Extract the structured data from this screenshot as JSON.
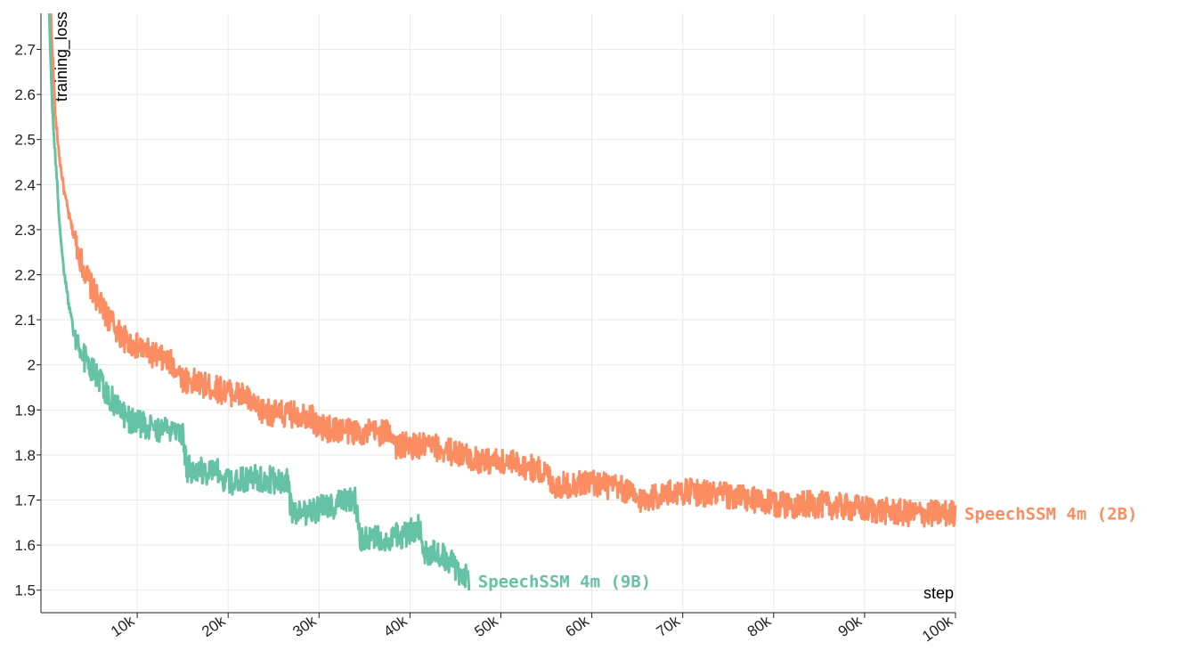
{
  "chart_data": {
    "type": "line",
    "xlabel": "step",
    "ylabel": "training_loss",
    "xlim": [
      0,
      100000
    ],
    "ylim": [
      1.45,
      2.78
    ],
    "grid": true,
    "x_ticks": [
      10000,
      20000,
      30000,
      40000,
      50000,
      60000,
      70000,
      80000,
      90000,
      100000
    ],
    "x_tick_labels": [
      "10k",
      "20k",
      "30k",
      "40k",
      "50k",
      "60k",
      "70k",
      "80k",
      "90k",
      "100k"
    ],
    "y_ticks": [
      1.5,
      1.6,
      1.7,
      1.8,
      1.9,
      2.0,
      2.1,
      2.2,
      2.3,
      2.4,
      2.5,
      2.6,
      2.7
    ],
    "y_tick_labels": [
      "1.5",
      "1.6",
      "1.7",
      "1.8",
      "1.9",
      "2",
      "2.1",
      "2.2",
      "2.3",
      "2.4",
      "2.5",
      "2.6",
      "2.7"
    ],
    "series": [
      {
        "name": "SpeechSSM 4m (2B)",
        "color": "#fc8d62",
        "points": [
          [
            500,
            2.78
          ],
          [
            1000,
            2.55
          ],
          [
            1500,
            2.45
          ],
          [
            2000,
            2.38
          ],
          [
            2500,
            2.33
          ],
          [
            3000,
            2.29
          ],
          [
            4000,
            2.22
          ],
          [
            5000,
            2.17
          ],
          [
            6000,
            2.13
          ],
          [
            7000,
            2.1
          ],
          [
            8000,
            2.07
          ],
          [
            9000,
            2.05
          ],
          [
            10000,
            2.04
          ],
          [
            12000,
            2.02
          ],
          [
            14000,
            2.0
          ],
          [
            15000,
            1.97
          ],
          [
            18000,
            1.95
          ],
          [
            22000,
            1.93
          ],
          [
            23000,
            1.9
          ],
          [
            26000,
            1.89
          ],
          [
            29000,
            1.89
          ],
          [
            30000,
            1.86
          ],
          [
            35000,
            1.85
          ],
          [
            38000,
            1.85
          ],
          [
            38500,
            1.82
          ],
          [
            42000,
            1.82
          ],
          [
            46000,
            1.8
          ],
          [
            47000,
            1.79
          ],
          [
            52000,
            1.78
          ],
          [
            55000,
            1.76
          ],
          [
            56000,
            1.73
          ],
          [
            60000,
            1.74
          ],
          [
            64000,
            1.72
          ],
          [
            65000,
            1.7
          ],
          [
            70000,
            1.72
          ],
          [
            75000,
            1.71
          ],
          [
            80000,
            1.69
          ],
          [
            85000,
            1.69
          ],
          [
            90000,
            1.68
          ],
          [
            95000,
            1.67
          ],
          [
            100000,
            1.67
          ]
        ]
      },
      {
        "name": "SpeechSSM 4m (9B)",
        "color": "#66c2a5",
        "points": [
          [
            300,
            2.78
          ],
          [
            700,
            2.55
          ],
          [
            1200,
            2.4
          ],
          [
            1500,
            2.3
          ],
          [
            2000,
            2.2
          ],
          [
            2500,
            2.13
          ],
          [
            3000,
            2.08
          ],
          [
            3500,
            2.04
          ],
          [
            4000,
            2.02
          ],
          [
            5000,
            1.99
          ],
          [
            6000,
            1.96
          ],
          [
            7000,
            1.93
          ],
          [
            8000,
            1.9
          ],
          [
            9000,
            1.88
          ],
          [
            10000,
            1.87
          ],
          [
            12000,
            1.86
          ],
          [
            15000,
            1.84
          ],
          [
            15500,
            1.77
          ],
          [
            19000,
            1.76
          ],
          [
            20000,
            1.74
          ],
          [
            23000,
            1.75
          ],
          [
            26500,
            1.74
          ],
          [
            27000,
            1.67
          ],
          [
            30000,
            1.68
          ],
          [
            34000,
            1.7
          ],
          [
            34500,
            1.61
          ],
          [
            39000,
            1.62
          ],
          [
            41000,
            1.64
          ],
          [
            41500,
            1.59
          ],
          [
            44000,
            1.57
          ],
          [
            45000,
            1.55
          ],
          [
            46500,
            1.52
          ]
        ]
      }
    ]
  }
}
